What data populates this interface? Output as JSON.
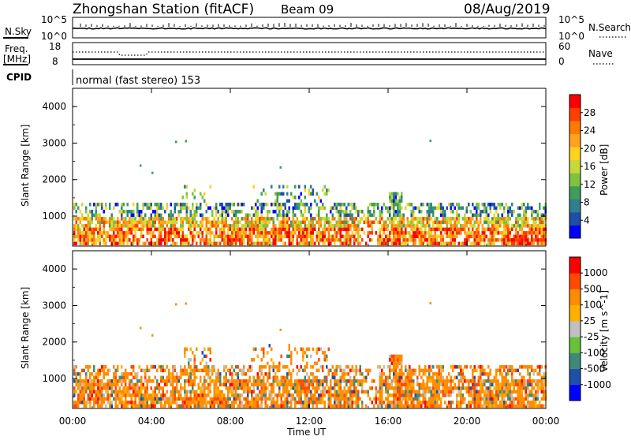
{
  "header": {
    "station": "Zhongshan Station (fitACF)",
    "beam": "Beam 09",
    "date": "08/Aug/2019"
  },
  "noise_panel": {
    "left_label": "N.Sky",
    "right_label": "N.Search",
    "left_ticks": [
      "10^5",
      "10^0"
    ],
    "right_ticks": [
      "10^5",
      "10^0"
    ]
  },
  "freq_panel": {
    "left_label_line1": "Freq.",
    "left_label_line2": "[MHz]",
    "right_label": "Nave",
    "left_ticks": [
      "18",
      "8"
    ],
    "right_ticks": [
      "60",
      "0"
    ]
  },
  "cpid": {
    "label": "CPID",
    "value": "normal (fast stereo) 153"
  },
  "chart_data": [
    {
      "type": "heatmap",
      "title": "Power",
      "ylabel": "Slant Range [km]",
      "xlabel": "Time UT",
      "xlim": [
        0,
        24
      ],
      "ylim": [
        180,
        4500
      ],
      "y_ticks": [
        "4000",
        "3000",
        "2000",
        "1000"
      ],
      "y_tick_values": [
        4000,
        3000,
        2000,
        1000
      ],
      "colorbar": {
        "label": "Power [dB]",
        "ticks": [
          "28",
          "24",
          "20",
          "16",
          "12",
          "8",
          "4"
        ],
        "colors": [
          "#0000ff",
          "#1e4fa8",
          "#2f7f8f",
          "#3f9c5a",
          "#7fc241",
          "#c6d93a",
          "#ffd21f",
          "#ffa21f",
          "#ff7a00",
          "#ff3f00",
          "#ff0000"
        ]
      }
    },
    {
      "type": "heatmap",
      "title": "Velocity",
      "ylabel": "Slant Range [km]",
      "xlabel": "Time UT",
      "xlim": [
        0,
        24
      ],
      "ylim": [
        180,
        4500
      ],
      "y_ticks": [
        "4000",
        "3000",
        "2000",
        "1000"
      ],
      "y_tick_values": [
        4000,
        3000,
        2000,
        1000
      ],
      "colorbar": {
        "label": "Velocity [m s^-1]",
        "ticks": [
          "1000",
          "500",
          "100",
          "25",
          "-25",
          "-100",
          "-500",
          "-1000"
        ],
        "colors": [
          "#0000ff",
          "#1f4fa9",
          "#3e8a7a",
          "#66c23a",
          "#c0c0c0",
          "#ffb000",
          "#ff8c00",
          "#ff4a00",
          "#ff0000"
        ]
      }
    }
  ],
  "x_axis": {
    "tick_labels": [
      "00:00",
      "04:00",
      "08:00",
      "12:00",
      "16:00",
      "20:00",
      "00:00"
    ],
    "tick_hours": [
      0,
      4,
      8,
      12,
      16,
      20,
      24
    ],
    "label": "Time UT"
  }
}
